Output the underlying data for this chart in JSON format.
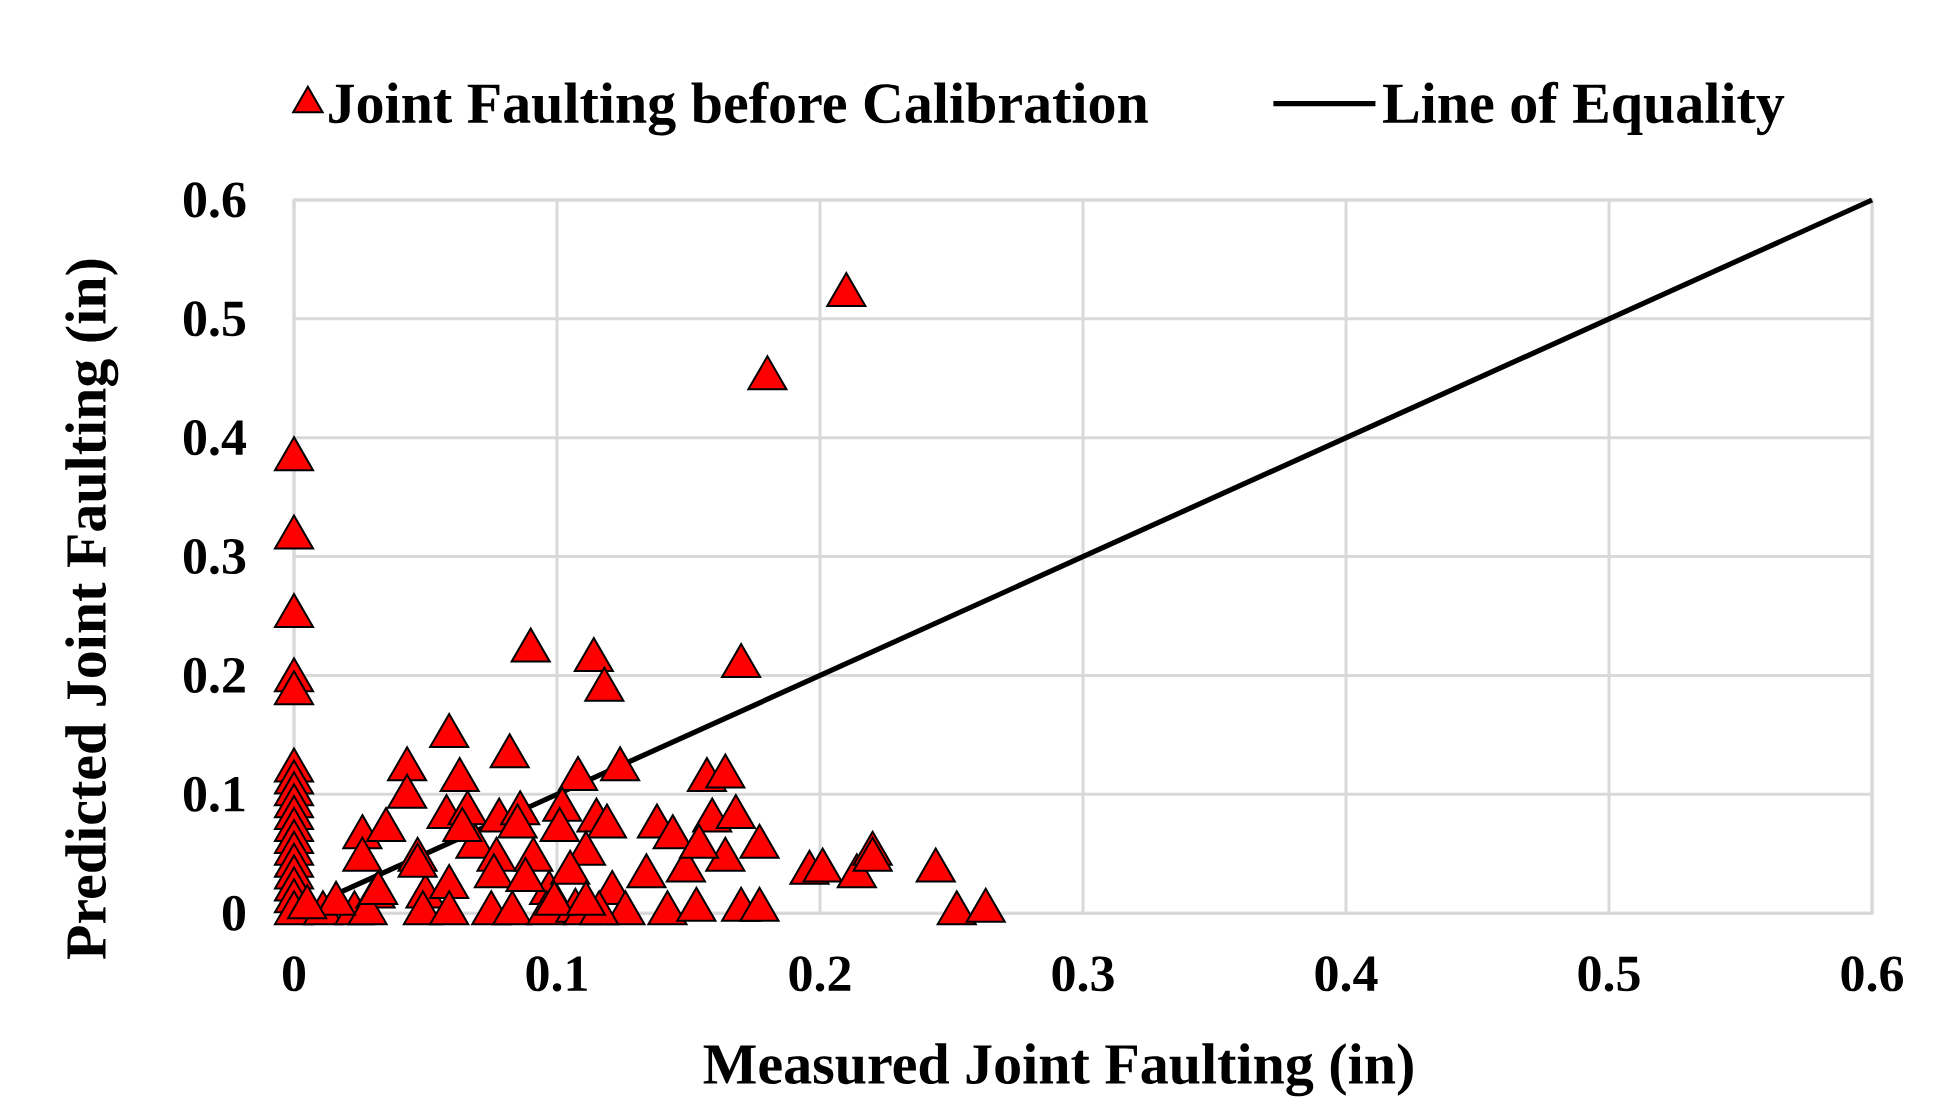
{
  "chart_data": {
    "type": "scatter",
    "xlabel": "Measured Joint Faulting (in)",
    "ylabel": "Predicted Joint Faulting (in)",
    "xlim": [
      0,
      0.6
    ],
    "ylim": [
      0,
      0.6
    ],
    "xticks": [
      0,
      0.1,
      0.2,
      0.3,
      0.4,
      0.5,
      0.6
    ],
    "yticks": [
      0,
      0.1,
      0.2,
      0.3,
      0.4,
      0.5,
      0.6
    ],
    "grid": true,
    "legend": "top",
    "series": [
      {
        "name": "Joint Faulting before Calibration",
        "color": "#ff0000",
        "marker": "triangle",
        "x": [
          0,
          0,
          0,
          0,
          0,
          0,
          0,
          0,
          0,
          0,
          0,
          0,
          0,
          0,
          0,
          0,
          0,
          0,
          0.21,
          0.18,
          0.09,
          0.114,
          0.118,
          0.17,
          0.059,
          0.082,
          0.043,
          0.124,
          0.043,
          0.063,
          0.108,
          0.157,
          0.164,
          0.058,
          0.066,
          0.078,
          0.086,
          0.085,
          0.102,
          0.101,
          0.115,
          0.119,
          0.138,
          0.144,
          0.159,
          0.168,
          0.177,
          0.026,
          0.035,
          0.026,
          0.047,
          0.069,
          0.077,
          0.091,
          0.111,
          0.134,
          0.149,
          0.164,
          0.154,
          0.011,
          0.023,
          0.031,
          0.028,
          0.05,
          0.059,
          0.049,
          0.059,
          0.075,
          0.083,
          0.097,
          0.096,
          0.107,
          0.11,
          0.121,
          0.126,
          0.116,
          0.142,
          0.153,
          0.17,
          0.177,
          0.196,
          0.201,
          0.214,
          0.22,
          0.22,
          0.244,
          0.252,
          0.263,
          0.064,
          0.047,
          0.076,
          0.088,
          0.105,
          0.099,
          0.111,
          0.016,
          0.005,
          0.032
        ],
        "values": [
          0.382,
          0.316,
          0.25,
          0.196,
          0.185,
          0.12,
          0.11,
          0.1,
          0.09,
          0.08,
          0.07,
          0.06,
          0.05,
          0.04,
          0.03,
          0.02,
          0.01,
          0,
          0.52,
          0.45,
          0.221,
          0.213,
          0.188,
          0.208,
          0.149,
          0.132,
          0.121,
          0.121,
          0.098,
          0.112,
          0.113,
          0.112,
          0.115,
          0.081,
          0.084,
          0.078,
          0.084,
          0.073,
          0.087,
          0.07,
          0.078,
          0.073,
          0.073,
          0.064,
          0.078,
          0.081,
          0.056,
          0.064,
          0.07,
          0.045,
          0.045,
          0.056,
          0.045,
          0.045,
          0.05,
          0.031,
          0.036,
          0.045,
          0.056,
          0,
          0,
          0.014,
          0,
          0.014,
          0.022,
          0,
          0,
          0,
          0,
          0.017,
          0,
          0.002,
          0,
          0.017,
          0,
          0,
          0,
          0.003,
          0.003,
          0.003,
          0.034,
          0.036,
          0.031,
          0.05,
          0.045,
          0.036,
          0,
          0.002,
          0.07,
          0.04,
          0.031,
          0.028,
          0.034,
          0.008,
          0.008,
          0.008,
          0.005,
          0.017
        ]
      },
      {
        "name": "Line of Equality",
        "type": "line",
        "color": "#000000",
        "marker": "none",
        "x": [
          0,
          0.6
        ],
        "values": [
          0,
          0.6
        ]
      }
    ]
  }
}
